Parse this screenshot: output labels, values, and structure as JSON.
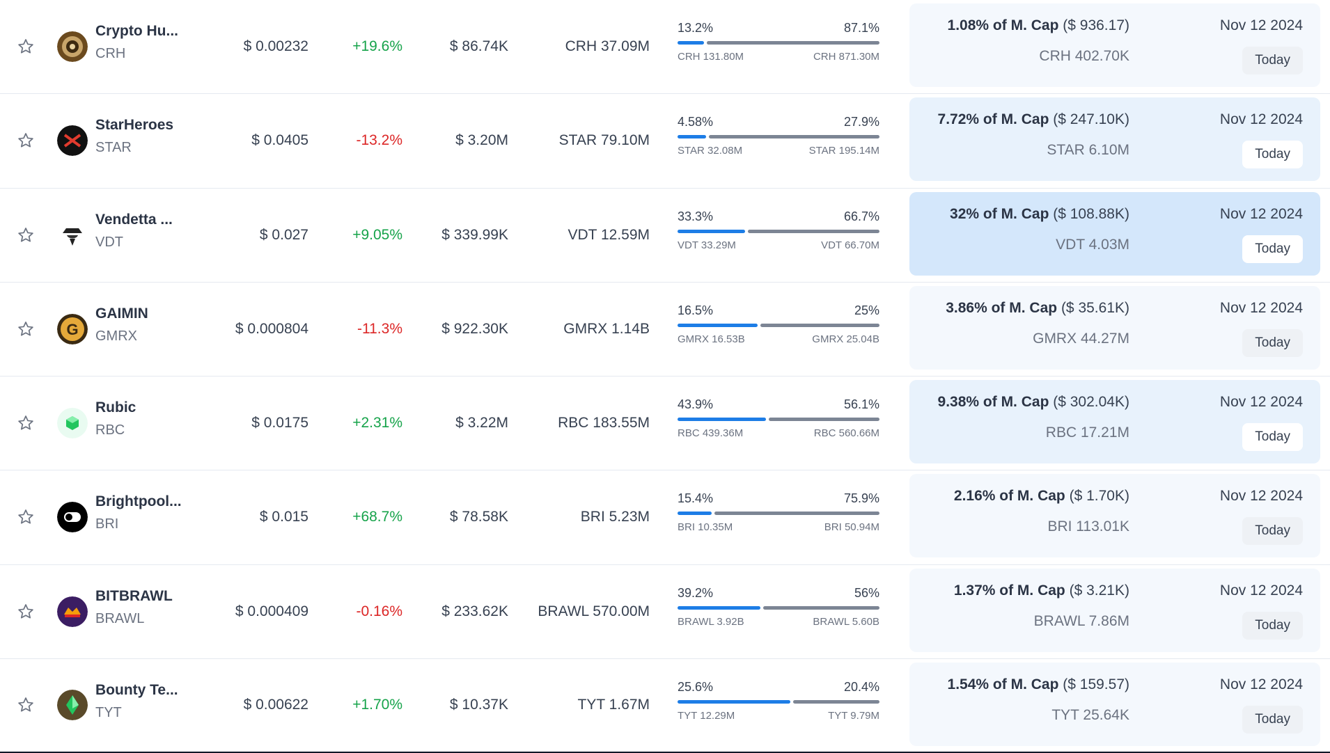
{
  "rows": [
    {
      "name": "Crypto Hu...",
      "symbol": "CRH",
      "icon": "crypto-hunters-logo",
      "price": "$ 0.00232",
      "change": "+19.6%",
      "change_dir": "pos",
      "volume": "$ 86.74K",
      "supply": "CRH 37.09M",
      "unlocked_pct": "13.2%",
      "locked_pct": "87.1%",
      "unlocked_fraction": 0.132,
      "unlocked_amount": "CRH 131.80M",
      "locked_amount": "CRH 871.30M",
      "mcap_pct": "1.08% of M. Cap",
      "mcap_value": "($ 936.17)",
      "next_unlock": "CRH 402.70K",
      "date": "Nov 12 2024",
      "today": "Today",
      "shade": "light"
    },
    {
      "name": "StarHeroes",
      "symbol": "STAR",
      "icon": "starheroes-logo",
      "price": "$ 0.0405",
      "change": "-13.2%",
      "change_dir": "neg",
      "volume": "$ 3.20M",
      "supply": "STAR 79.10M",
      "unlocked_pct": "4.58%",
      "locked_pct": "27.9%",
      "unlocked_fraction": 0.141,
      "unlocked_amount": "STAR 32.08M",
      "locked_amount": "STAR 195.14M",
      "mcap_pct": "7.72% of M. Cap",
      "mcap_value": "($ 247.10K)",
      "next_unlock": "STAR 6.10M",
      "date": "Nov 12 2024",
      "today": "Today",
      "shade": "medium"
    },
    {
      "name": "Vendetta ...",
      "symbol": "VDT",
      "icon": "vendetta-logo",
      "price": "$ 0.027",
      "change": "+9.05%",
      "change_dir": "pos",
      "volume": "$ 339.99K",
      "supply": "VDT 12.59M",
      "unlocked_pct": "33.3%",
      "locked_pct": "66.7%",
      "unlocked_fraction": 0.333,
      "unlocked_amount": "VDT 33.29M",
      "locked_amount": "VDT 66.70M",
      "mcap_pct": "32% of M. Cap",
      "mcap_value": "($ 108.88K)",
      "next_unlock": "VDT 4.03M",
      "date": "Nov 12 2024",
      "today": "Today",
      "shade": "strong"
    },
    {
      "name": "GAIMIN",
      "symbol": "GMRX",
      "icon": "gaimin-logo",
      "price": "$ 0.000804",
      "change": "-11.3%",
      "change_dir": "neg",
      "volume": "$ 922.30K",
      "supply": "GMRX 1.14B",
      "unlocked_pct": "16.5%",
      "locked_pct": "25%",
      "unlocked_fraction": 0.398,
      "unlocked_amount": "GMRX 16.53B",
      "locked_amount": "GMRX 25.04B",
      "mcap_pct": "3.86% of M. Cap",
      "mcap_value": "($ 35.61K)",
      "next_unlock": "GMRX 44.27M",
      "date": "Nov 12 2024",
      "today": "Today",
      "shade": "light"
    },
    {
      "name": "Rubic",
      "symbol": "RBC",
      "icon": "rubic-logo",
      "price": "$ 0.0175",
      "change": "+2.31%",
      "change_dir": "pos",
      "volume": "$ 3.22M",
      "supply": "RBC 183.55M",
      "unlocked_pct": "43.9%",
      "locked_pct": "56.1%",
      "unlocked_fraction": 0.439,
      "unlocked_amount": "RBC 439.36M",
      "locked_amount": "RBC 560.66M",
      "mcap_pct": "9.38% of M. Cap",
      "mcap_value": "($ 302.04K)",
      "next_unlock": "RBC 17.21M",
      "date": "Nov 12 2024",
      "today": "Today",
      "shade": "medium"
    },
    {
      "name": "Brightpool...",
      "symbol": "BRI",
      "icon": "brightpool-logo",
      "price": "$ 0.015",
      "change": "+68.7%",
      "change_dir": "pos",
      "volume": "$ 78.58K",
      "supply": "BRI 5.23M",
      "unlocked_pct": "15.4%",
      "locked_pct": "75.9%",
      "unlocked_fraction": 0.169,
      "unlocked_amount": "BRI 10.35M",
      "locked_amount": "BRI 50.94M",
      "mcap_pct": "2.16% of M. Cap",
      "mcap_value": "($ 1.70K)",
      "next_unlock": "BRI 113.01K",
      "date": "Nov 12 2024",
      "today": "Today",
      "shade": "light"
    },
    {
      "name": "BITBRAWL",
      "symbol": "BRAWL",
      "icon": "bitbrawl-logo",
      "price": "$ 0.000409",
      "change": "-0.16%",
      "change_dir": "neg",
      "volume": "$ 233.62K",
      "supply": "BRAWL 570.00M",
      "unlocked_pct": "39.2%",
      "locked_pct": "56%",
      "unlocked_fraction": 0.412,
      "unlocked_amount": "BRAWL 3.92B",
      "locked_amount": "BRAWL 5.60B",
      "mcap_pct": "1.37% of M. Cap",
      "mcap_value": "($ 3.21K)",
      "next_unlock": "BRAWL 7.86M",
      "date": "Nov 12 2024",
      "today": "Today",
      "shade": "light"
    },
    {
      "name": "Bounty Te...",
      "symbol": "TYT",
      "icon": "bounty-temple-logo",
      "price": "$ 0.00622",
      "change": "+1.70%",
      "change_dir": "pos",
      "volume": "$ 10.37K",
      "supply": "TYT 1.67M",
      "unlocked_pct": "25.6%",
      "locked_pct": "20.4%",
      "unlocked_fraction": 0.557,
      "unlocked_amount": "TYT 12.29M",
      "locked_amount": "TYT 9.79M",
      "mcap_pct": "1.54% of M. Cap",
      "mcap_value": "($ 159.57)",
      "next_unlock": "TYT 25.64K",
      "date": "Nov 12 2024",
      "today": "Today",
      "shade": "light"
    }
  ],
  "colors": {
    "positive": "#16a34a",
    "negative": "#dc2626",
    "bar_unlocked": "#1d7de6",
    "bar_locked": "#7c8594",
    "card_light": "#f4f8fd",
    "card_medium": "#e8f2fc",
    "card_strong": "#d4e7fb"
  }
}
